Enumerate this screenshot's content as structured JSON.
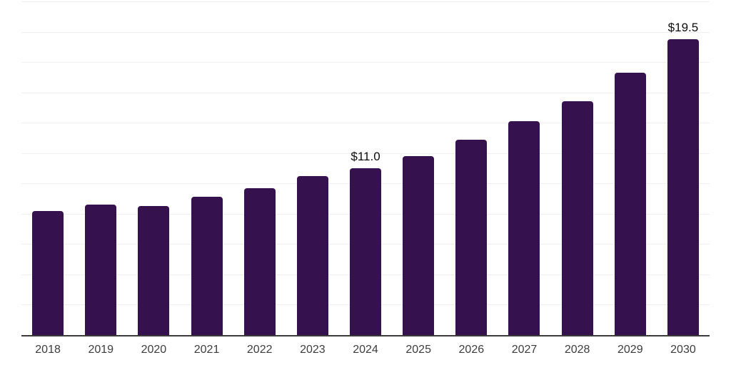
{
  "chart_data": {
    "type": "bar",
    "title": "",
    "xlabel": "",
    "ylabel": "",
    "categories": [
      "2018",
      "2019",
      "2020",
      "2021",
      "2022",
      "2023",
      "2024",
      "2025",
      "2026",
      "2027",
      "2028",
      "2029",
      "2030"
    ],
    "values": [
      8.2,
      8.6,
      8.5,
      9.1,
      9.7,
      10.5,
      11.0,
      11.8,
      12.9,
      14.1,
      15.4,
      17.3,
      19.5
    ],
    "data_labels": {
      "2024": "$11.0",
      "2030": "$19.5"
    },
    "ylim": [
      0,
      22
    ],
    "gridline_step": 2,
    "grid": true,
    "legend": "none",
    "colors": {
      "bar": "#35114d",
      "gridline": "#efefef",
      "axis_line": "#3a3a3a",
      "tick_label": "#3d3d3d",
      "data_label": "#0d0d0d",
      "background": "#ffffff"
    }
  }
}
